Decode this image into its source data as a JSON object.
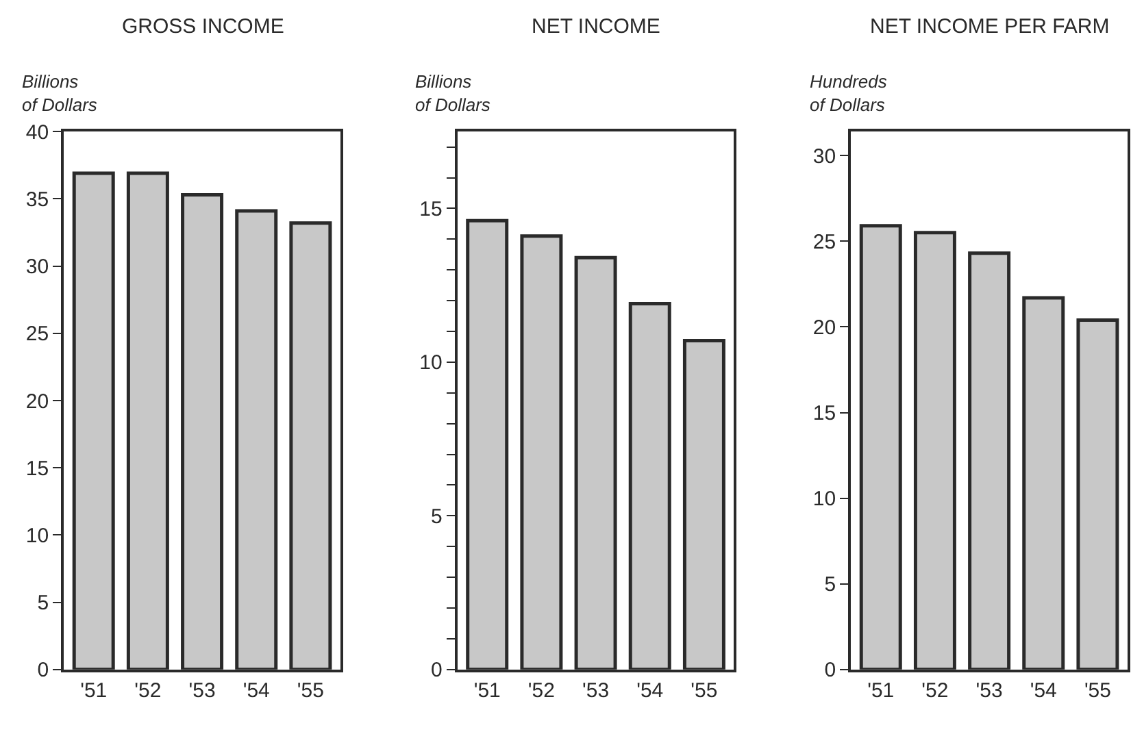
{
  "chart_data": [
    {
      "type": "bar",
      "title": "GROSS INCOME",
      "ylabel": "Billions\nof Dollars",
      "categories": [
        "'51",
        "'52",
        "'53",
        "'54",
        "'55"
      ],
      "values": [
        36.9,
        36.9,
        35.3,
        34.1,
        33.2
      ],
      "color": "#c8c8c8",
      "ylim": [
        0,
        40
      ],
      "yticks": [
        0,
        5,
        10,
        15,
        20,
        25,
        30,
        35,
        40
      ]
    },
    {
      "type": "bar",
      "title": "NET INCOME",
      "ylabel": "Billions\nof Dollars",
      "categories": [
        "'51",
        "'52",
        "'53",
        "'54",
        "'55"
      ],
      "values": [
        14.6,
        14.1,
        13.4,
        11.9,
        10.7
      ],
      "color": "#c8c8c8",
      "ylim": [
        0,
        17.5
      ],
      "yticks": [
        0,
        {
          "value": 1,
          "label": null
        },
        {
          "value": 2,
          "label": null
        },
        {
          "value": 3,
          "label": null
        },
        {
          "value": 4,
          "label": null
        },
        5,
        {
          "value": 6,
          "label": null
        },
        {
          "value": 7,
          "label": null
        },
        {
          "value": 8,
          "label": null
        },
        {
          "value": 9,
          "label": null
        },
        10,
        {
          "value": 11,
          "label": null
        },
        {
          "value": 12,
          "label": null
        },
        {
          "value": 13,
          "label": null
        },
        {
          "value": 14,
          "label": null
        },
        15,
        {
          "value": 16,
          "label": null
        },
        {
          "value": 17,
          "label": null
        }
      ]
    },
    {
      "type": "bar",
      "title": "NET INCOME PER FARM",
      "ylabel": "Hundreds\nof Dollars",
      "categories": [
        "'51",
        "'52",
        "'53",
        "'54",
        "'55"
      ],
      "values": [
        25.9,
        25.5,
        24.3,
        21.7,
        20.4
      ],
      "color": "#c8c8c8",
      "ylim": [
        0,
        31.4
      ],
      "yticks": [
        0,
        5,
        10,
        15,
        20,
        25,
        30
      ]
    }
  ]
}
